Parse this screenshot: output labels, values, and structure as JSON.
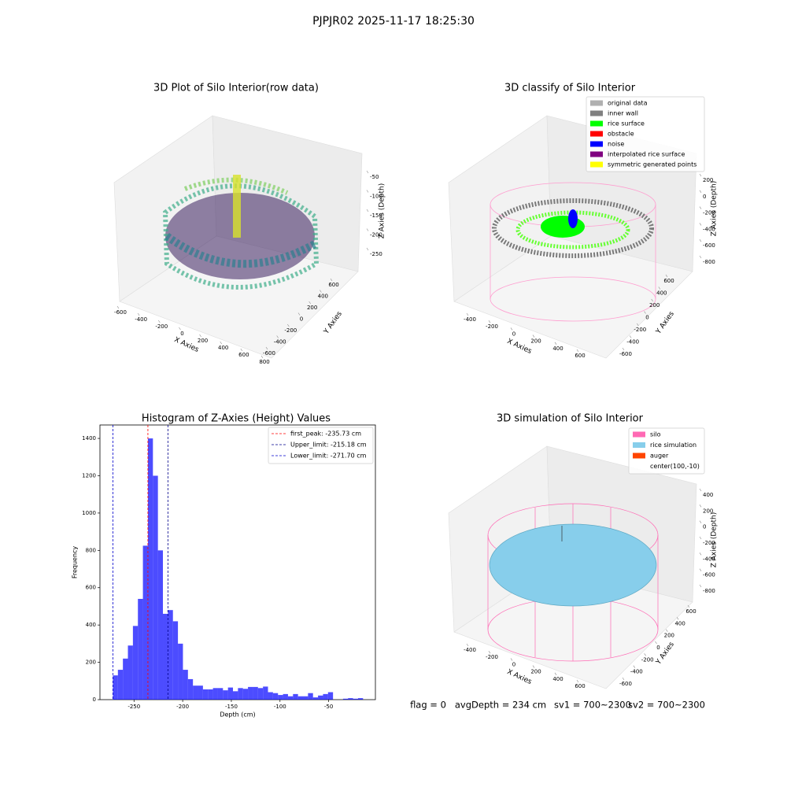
{
  "title": "PJPJR02 2025-11-17 18:25:30",
  "footer": [
    "flag = 0",
    "avgDepth = 234 cm",
    "sv1 = 700~2300",
    "sv2 = 700~2300"
  ],
  "chart_data": [
    {
      "type": "scatter3d",
      "title": "3D Plot of Silo Interior(row data)",
      "xlabel": "X Axies",
      "ylabel": "Y Axies",
      "zlabel": "Z Axies (Depth)",
      "xticks": [
        -600,
        -400,
        -200,
        0,
        200,
        400,
        600,
        800
      ],
      "yticks": [
        -600,
        -400,
        -200,
        0,
        200,
        400,
        600
      ],
      "zticks": [
        -50,
        -100,
        -150,
        -200,
        -250
      ]
    },
    {
      "type": "scatter3d",
      "title": "3D classify of Silo Interior",
      "xlabel": "X Axies",
      "ylabel": "Y Axies",
      "zlabel": "Z Axies (Depth)",
      "xticks": [
        -400,
        -200,
        0,
        200,
        400,
        600
      ],
      "yticks": [
        -600,
        -400,
        -200,
        0,
        200,
        400,
        600
      ],
      "zticks": [
        200,
        0,
        -200,
        -400,
        -600,
        -800
      ],
      "legend": [
        {
          "name": "original data",
          "color": "#b0b0b0"
        },
        {
          "name": "inner wall",
          "color": "#808080"
        },
        {
          "name": "rice surface",
          "color": "#00ff00"
        },
        {
          "name": "obstacle",
          "color": "#ff0000"
        },
        {
          "name": "noise",
          "color": "#0000ff"
        },
        {
          "name": "interpolated rice surface",
          "color": "#800080"
        },
        {
          "name": "symmetric generated points",
          "color": "#ffff00"
        }
      ]
    },
    {
      "type": "histogram",
      "title": "Histogram of Z-Axies (Height) Values",
      "xlabel": "Depth (cm)",
      "ylabel": "Frequency",
      "color": "#0000ff",
      "bins": [
        -271.7,
        -266.56,
        -261.42,
        -256.28,
        -251.14,
        -246,
        -240.86,
        -235.72,
        -230.58,
        -225.44,
        -220.3,
        -215.16,
        -210.02,
        -204.88,
        -199.74,
        -194.6,
        -189.46,
        -184.32,
        -179.18,
        -174.04,
        -168.9,
        -163.76,
        -158.62,
        -153.48,
        -148.34,
        -143.2,
        -138.06,
        -132.92,
        -127.78,
        -122.64,
        -117.5,
        -112.36,
        -107.22,
        -102.08,
        -96.94,
        -91.8,
        -86.66,
        -81.52,
        -76.38,
        -71.24,
        -66.1,
        -60.96,
        -55.82,
        -50.68,
        -45.54,
        -40.4,
        -35.26,
        -30.12,
        -24.98,
        -19.84,
        -14.7
      ],
      "values": [
        130,
        160,
        220,
        290,
        395,
        540,
        825,
        1400,
        1200,
        800,
        460,
        480,
        420,
        300,
        160,
        110,
        75,
        75,
        55,
        55,
        62,
        62,
        50,
        65,
        45,
        62,
        58,
        68,
        68,
        62,
        70,
        40,
        35,
        25,
        30,
        18,
        30,
        18,
        18,
        35,
        12,
        22,
        30,
        40,
        0,
        0,
        5,
        8,
        5,
        8
      ],
      "xlim": [
        -285,
        -2
      ],
      "ylim": [
        0,
        1472
      ],
      "xticks": [
        -250,
        -200,
        -150,
        -100,
        -50
      ],
      "yticks": [
        0,
        200,
        400,
        600,
        800,
        1000,
        1200,
        1400
      ],
      "vlines": [
        {
          "name": "first_peak: -235.73 cm",
          "value": -235.73,
          "color": "#ff0000"
        },
        {
          "name": "Upper_limit: -215.18 cm",
          "value": -215.18,
          "color": "#00008b"
        },
        {
          "name": "Lower_limit: -271.70 cm",
          "value": -271.7,
          "color": "#0000cd"
        }
      ]
    },
    {
      "type": "scatter3d",
      "title": "3D simulation of Silo Interior",
      "xlabel": "X Axies",
      "ylabel": "Y Axies",
      "zlabel": "Z Axies (Depth)",
      "xticks": [
        -400,
        -200,
        0,
        200,
        400,
        600
      ],
      "yticks": [
        -600,
        -400,
        -200,
        0,
        200,
        400,
        600
      ],
      "zticks": [
        400,
        200,
        0,
        -200,
        -400,
        -600,
        -800
      ],
      "legend": [
        {
          "name": "silo",
          "color": "#ff69b4"
        },
        {
          "name": "rice simulation",
          "color": "#87ceeb"
        },
        {
          "name": "auger",
          "color": "#ff4500"
        },
        {
          "name": "center(100,-10)"
        }
      ]
    }
  ]
}
